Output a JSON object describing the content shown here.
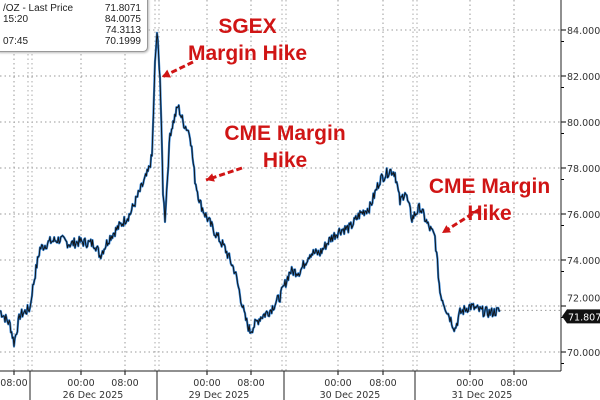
{
  "legend": {
    "line1_label": "/OZ - Last Price",
    "line1_value": "71.8071",
    "line2_label": "15:20",
    "line2_value": "84.0075",
    "line3_value": "74.3113",
    "line4_label": "07:45",
    "line4_value": "70.1999"
  },
  "annotations": [
    {
      "line1": "SGEX",
      "line2": "Margin Hike"
    },
    {
      "line1": "CME Margin",
      "line2": "Hike"
    },
    {
      "line1": "CME Margin",
      "line2": "Hike"
    }
  ],
  "colors": {
    "line": "#111111",
    "line_highlight": "#2f7fd0",
    "annotation": "#d01515",
    "grid": "#888888"
  },
  "chart_data": {
    "type": "line",
    "ylim": [
      69.4,
      85.3
    ],
    "xlim": [
      0,
      561
    ],
    "yticks": [
      "84.0000",
      "82.0000",
      "80.0000",
      "78.0000",
      "76.0000",
      "74.0000",
      "72.0000",
      "70.0000"
    ],
    "ytick_values": [
      84,
      82,
      80,
      78,
      76,
      74,
      72,
      70
    ],
    "last_price_label": "71.8071",
    "last_price": 71.8071,
    "xticks": [
      {
        "t": 14,
        "time": "08:00",
        "date": ""
      },
      {
        "t": 81,
        "time": "00:00",
        "date": "26 Dec 2025"
      },
      {
        "t": 125,
        "time": "08:00",
        "date": ""
      },
      {
        "t": 207,
        "time": "00:00",
        "date": "29 Dec 2025"
      },
      {
        "t": 251,
        "time": "08:00",
        "date": ""
      },
      {
        "t": 338,
        "time": "00:00",
        "date": "30 Dec 2025"
      },
      {
        "t": 383,
        "time": "08:00",
        "date": ""
      },
      {
        "t": 470,
        "time": "00:00",
        "date": "31 Dec 2025"
      },
      {
        "t": 514,
        "time": "08:00",
        "date": ""
      }
    ],
    "day_breaks": [
      30,
      157,
      284,
      415
    ],
    "series": [
      {
        "name": "Last Price",
        "points": [
          [
            0,
            71.8
          ],
          [
            5,
            71.5
          ],
          [
            10,
            71.2
          ],
          [
            14,
            70.4
          ],
          [
            20,
            71.6
          ],
          [
            30,
            71.9
          ],
          [
            32,
            72.6
          ],
          [
            36,
            73.6
          ],
          [
            40,
            74.5
          ],
          [
            50,
            74.8
          ],
          [
            60,
            74.9
          ],
          [
            70,
            74.7
          ],
          [
            80,
            74.8
          ],
          [
            95,
            74.7
          ],
          [
            100,
            74.2
          ],
          [
            110,
            75.0
          ],
          [
            120,
            75.5
          ],
          [
            130,
            76.0
          ],
          [
            140,
            77.0
          ],
          [
            148,
            77.8
          ],
          [
            152,
            78.5
          ],
          [
            155,
            82.5
          ],
          [
            157,
            83.9
          ],
          [
            160,
            82.0
          ],
          [
            163,
            77.0
          ],
          [
            165,
            75.8
          ],
          [
            170,
            79.5
          ],
          [
            178,
            80.7
          ],
          [
            183,
            80.0
          ],
          [
            190,
            79.5
          ],
          [
            195,
            77.5
          ],
          [
            200,
            76.5
          ],
          [
            205,
            76.0
          ],
          [
            215,
            75.2
          ],
          [
            225,
            74.5
          ],
          [
            235,
            73.5
          ],
          [
            245,
            71.5
          ],
          [
            250,
            70.9
          ],
          [
            260,
            71.5
          ],
          [
            270,
            71.8
          ],
          [
            280,
            72.4
          ],
          [
            290,
            73.5
          ],
          [
            300,
            73.5
          ],
          [
            310,
            74.3
          ],
          [
            320,
            74.3
          ],
          [
            330,
            74.9
          ],
          [
            340,
            75.3
          ],
          [
            350,
            75.4
          ],
          [
            360,
            76.0
          ],
          [
            370,
            76.3
          ],
          [
            380,
            77.5
          ],
          [
            390,
            77.9
          ],
          [
            395,
            77.8
          ],
          [
            400,
            76.5
          ],
          [
            405,
            77.0
          ],
          [
            412,
            75.8
          ],
          [
            420,
            76.3
          ],
          [
            428,
            75.5
          ],
          [
            435,
            75.0
          ],
          [
            440,
            72.6
          ],
          [
            445,
            72.0
          ],
          [
            455,
            71.0
          ],
          [
            460,
            71.7
          ],
          [
            470,
            72.0
          ],
          [
            480,
            71.8
          ],
          [
            490,
            71.7
          ],
          [
            500,
            71.8
          ]
        ]
      }
    ]
  }
}
